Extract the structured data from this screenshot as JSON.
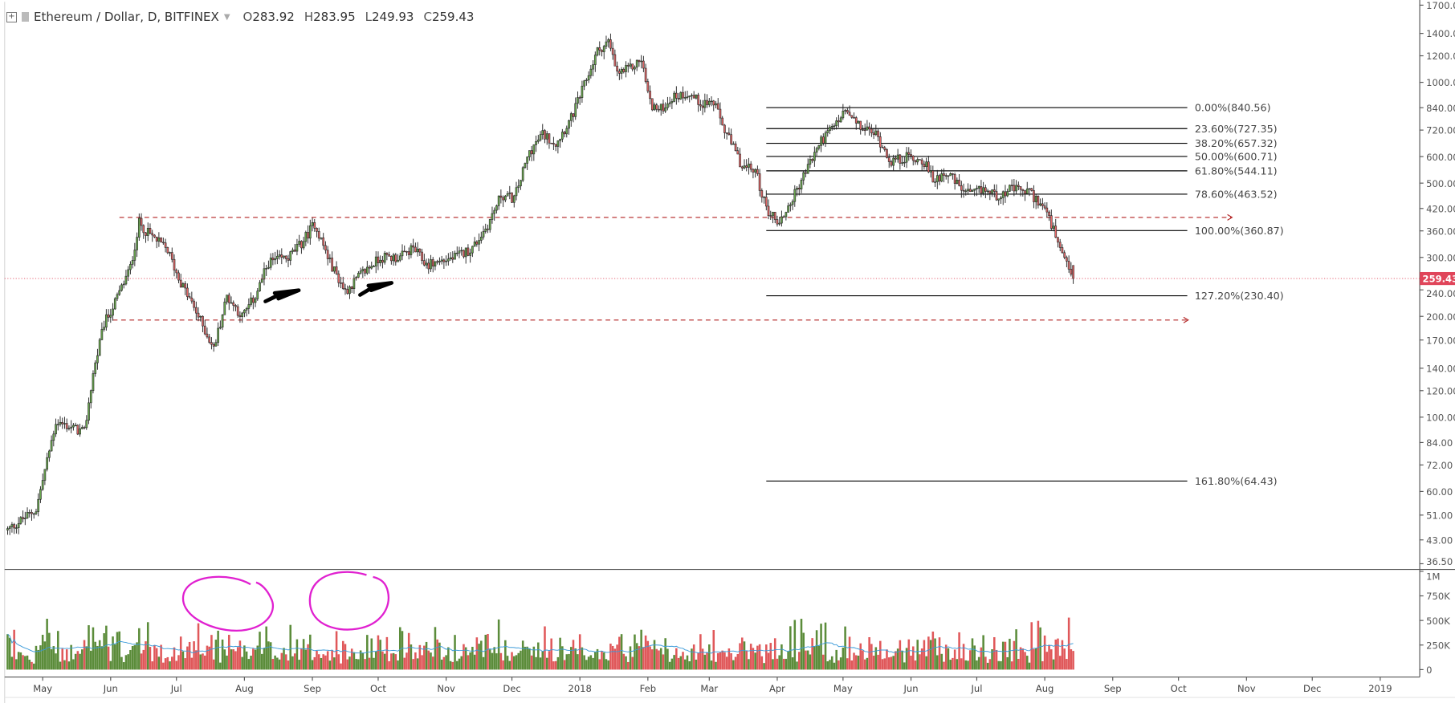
{
  "header": {
    "symbol": "Ethereum / Dollar, D, BITFINEX",
    "open_label": "O",
    "open": "283.92",
    "high_label": "H",
    "high": "283.95",
    "low_label": "L",
    "low": "249.93",
    "close_label": "C",
    "close": "259.43",
    "icons": [
      "expand-plus-icon",
      "flag-icon",
      "chevron-down-icon"
    ]
  },
  "chart_data": {
    "type": "candlestick",
    "title": "Ethereum / Dollar, D, BITFINEX",
    "scale": "log",
    "ylim": [
      36.5,
      1700
    ],
    "last_price": "259.43",
    "last_candle": {
      "o": 283.92,
      "h": 283.95,
      "l": 249.93,
      "c": 259.43
    },
    "price_ticks": [
      "1700.00",
      "1400.00",
      "1200.00",
      "1000.00",
      "840.00",
      "720.00",
      "600.00",
      "500.00",
      "420.00",
      "360.00",
      "300.00",
      "240.00",
      "200.00",
      "170.00",
      "140.00",
      "120.00",
      "100.00",
      "84.00",
      "72.00",
      "60.00",
      "51.00",
      "43.00",
      "36.50"
    ],
    "time_ticks": [
      {
        "label": "May",
        "date": "2017-05-01"
      },
      {
        "label": "Jun",
        "date": "2017-06-01"
      },
      {
        "label": "Jul",
        "date": "2017-07-01"
      },
      {
        "label": "Aug",
        "date": "2017-08-01"
      },
      {
        "label": "Sep",
        "date": "2017-09-01"
      },
      {
        "label": "Oct",
        "date": "2017-10-01"
      },
      {
        "label": "Nov",
        "date": "2017-11-01"
      },
      {
        "label": "Dec",
        "date": "2017-12-01"
      },
      {
        "label": "2018",
        "date": "2018-01-01"
      },
      {
        "label": "Feb",
        "date": "2018-02-01"
      },
      {
        "label": "Mar",
        "date": "2018-03-01"
      },
      {
        "label": "Apr",
        "date": "2018-04-01"
      },
      {
        "label": "May",
        "date": "2018-05-01"
      },
      {
        "label": "Jun",
        "date": "2018-06-01"
      },
      {
        "label": "Jul",
        "date": "2018-07-01"
      },
      {
        "label": "Aug",
        "date": "2018-08-01"
      },
      {
        "label": "Sep",
        "date": "2018-09-01"
      },
      {
        "label": "Oct",
        "date": "2018-10-01"
      },
      {
        "label": "Nov",
        "date": "2018-11-01"
      },
      {
        "label": "Dec",
        "date": "2018-12-01"
      },
      {
        "label": "2019",
        "date": "2019-01-01"
      }
    ],
    "price_path": [
      [
        "2017-04-15",
        46
      ],
      [
        "2017-04-28",
        53
      ],
      [
        "2017-05-07",
        97
      ],
      [
        "2017-05-20",
        90
      ],
      [
        "2017-05-24",
        135
      ],
      [
        "2017-05-29",
        190
      ],
      [
        "2017-06-03",
        220
      ],
      [
        "2017-06-10",
        280
      ],
      [
        "2017-06-14",
        380
      ],
      [
        "2017-06-18",
        355
      ],
      [
        "2017-06-27",
        315
      ],
      [
        "2017-07-02",
        260
      ],
      [
        "2017-07-11",
        200
      ],
      [
        "2017-07-18",
        160
      ],
      [
        "2017-07-24",
        230
      ],
      [
        "2017-07-31",
        200
      ],
      [
        "2017-08-06",
        230
      ],
      [
        "2017-08-12",
        290
      ],
      [
        "2017-08-21",
        300
      ],
      [
        "2017-08-27",
        330
      ],
      [
        "2017-09-02",
        380
      ],
      [
        "2017-09-09",
        290
      ],
      [
        "2017-09-16",
        238
      ],
      [
        "2017-09-24",
        270
      ],
      [
        "2017-10-02",
        300
      ],
      [
        "2017-10-11",
        300
      ],
      [
        "2017-10-17",
        320
      ],
      [
        "2017-10-23",
        285
      ],
      [
        "2017-11-05",
        300
      ],
      [
        "2017-11-13",
        320
      ],
      [
        "2017-11-20",
        375
      ],
      [
        "2017-11-26",
        460
      ],
      [
        "2017-12-02",
        450
      ],
      [
        "2017-12-09",
        620
      ],
      [
        "2017-12-15",
        700
      ],
      [
        "2017-12-21",
        660
      ],
      [
        "2017-12-28",
        780
      ],
      [
        "2018-01-03",
        980
      ],
      [
        "2018-01-09",
        1240
      ],
      [
        "2018-01-14",
        1320
      ],
      [
        "2018-01-18",
        1060
      ],
      [
        "2018-01-24",
        1100
      ],
      [
        "2018-01-29",
        1170
      ],
      [
        "2018-02-02",
        870
      ],
      [
        "2018-02-06",
        820
      ],
      [
        "2018-02-12",
        900
      ],
      [
        "2018-02-19",
        930
      ],
      [
        "2018-02-25",
        870
      ],
      [
        "2018-03-03",
        870
      ],
      [
        "2018-03-08",
        720
      ],
      [
        "2018-03-16",
        560
      ],
      [
        "2018-03-22",
        545
      ],
      [
        "2018-03-27",
        420
      ],
      [
        "2018-04-02",
        380
      ],
      [
        "2018-04-08",
        450
      ],
      [
        "2018-04-15",
        560
      ],
      [
        "2018-04-21",
        670
      ],
      [
        "2018-04-27",
        740
      ],
      [
        "2018-05-02",
        820
      ],
      [
        "2018-05-08",
        740
      ],
      [
        "2018-05-16",
        700
      ],
      [
        "2018-05-23",
        580
      ],
      [
        "2018-05-31",
        600
      ],
      [
        "2018-06-07",
        580
      ],
      [
        "2018-06-11",
        510
      ],
      [
        "2018-06-17",
        540
      ],
      [
        "2018-06-24",
        480
      ],
      [
        "2018-06-28",
        460
      ],
      [
        "2018-07-04",
        480
      ],
      [
        "2018-07-10",
        460
      ],
      [
        "2018-07-17",
        480
      ],
      [
        "2018-07-25",
        470
      ],
      [
        "2018-08-01",
        420
      ],
      [
        "2018-08-05",
        360
      ],
      [
        "2018-08-09",
        300
      ],
      [
        "2018-08-14",
        259.43
      ]
    ],
    "fibonacci": {
      "start_date": "2018-03-27",
      "end_date": "2018-10-05",
      "levels": [
        {
          "price": 840.56,
          "label": "0.00%(840.56)"
        },
        {
          "price": 727.35,
          "label": "23.60%(727.35)"
        },
        {
          "price": 657.32,
          "label": "38.20%(657.32)"
        },
        {
          "price": 600.71,
          "label": "50.00%(600.71)"
        },
        {
          "price": 544.11,
          "label": "61.80%(544.11)"
        },
        {
          "price": 463.52,
          "label": "78.60%(463.52)"
        },
        {
          "price": 360.87,
          "label": "100.00%(360.87)"
        },
        {
          "price": 230.4,
          "label": "127.20%(230.40)"
        },
        {
          "price": 64.43,
          "label": "161.80%(64.43)"
        }
      ]
    },
    "horizontal_rays": [
      {
        "price": 395,
        "from": "2017-06-05",
        "to": "2018-10-25",
        "color": "#b22222"
      },
      {
        "price": 195,
        "from": "2017-06-02",
        "to": "2018-10-05",
        "color": "#b22222"
      }
    ],
    "volume": {
      "ticks": [
        "1M",
        "750K",
        "500K",
        "250K",
        "0"
      ],
      "ylim": [
        0,
        1000000
      ],
      "up_color": "#5b8c3a",
      "down_color": "#e0585a",
      "ma_color": "#3a9ad9"
    },
    "colors": {
      "up": "#6aa84f",
      "down": "#e06666",
      "last_price": "#e0455a",
      "accent": "#3b8fdd",
      "annotation": "#e020d0"
    }
  }
}
